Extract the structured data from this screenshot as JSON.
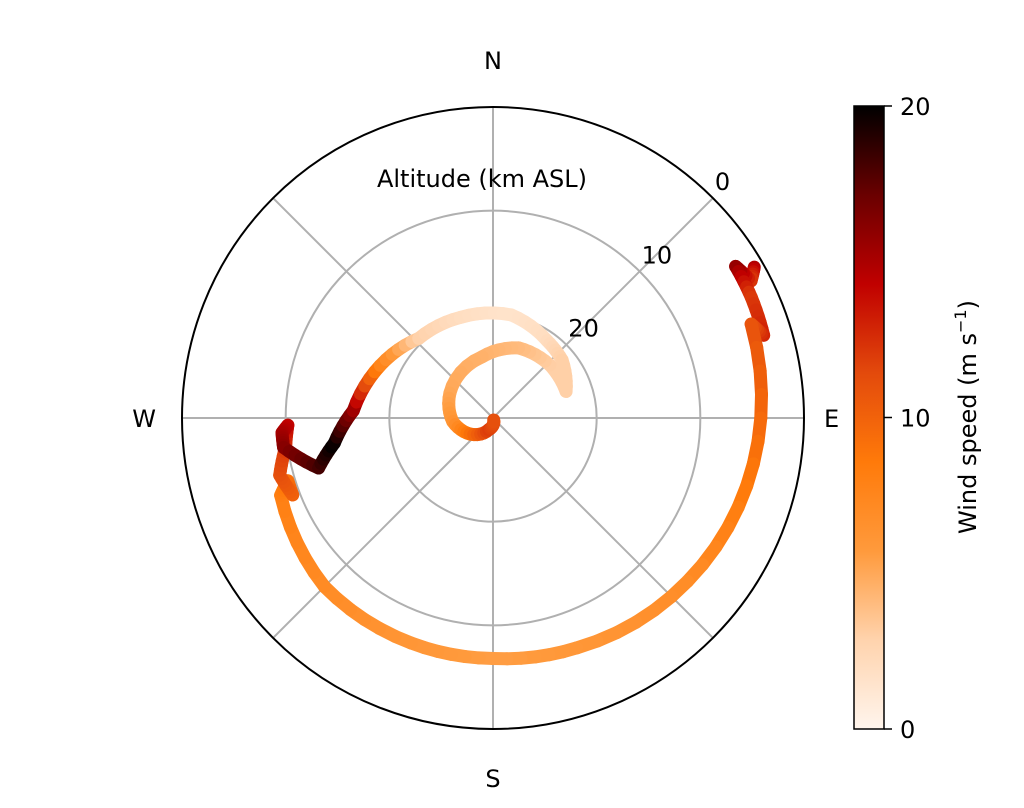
{
  "chart_data": {
    "type": "polar-line",
    "projection": "compass",
    "directions": {
      "north": "N",
      "east": "E",
      "south": "S",
      "west": "W"
    },
    "radial_axis": {
      "label": "Altitude (km ASL)",
      "range": [
        30,
        0
      ],
      "ticks": [
        0,
        10,
        20
      ],
      "tick_labels": [
        "0",
        "10",
        "20"
      ],
      "grid": true
    },
    "colorbar": {
      "label_main": "Wind speed (m s",
      "label_exp": "−1",
      "label_close": ")",
      "range": [
        0,
        20
      ],
      "ticks": [
        0,
        10,
        20
      ],
      "tick_labels": [
        "0",
        "10",
        "20"
      ],
      "colormap": [
        "#fff5ed",
        "#ffd3ad",
        "#ff9a3c",
        "#ff7a0a",
        "#e34a0c",
        "#c00000",
        "#6a0000",
        "#000000"
      ]
    },
    "grid_angles_deg": [
      0,
      45,
      90,
      135,
      180,
      225,
      270,
      315
    ],
    "series": [
      {
        "type": "trajectory",
        "points": [
          {
            "az": 60,
            "alt": 0.9,
            "ws": 15
          },
          {
            "az": 62,
            "alt": 1.8,
            "ws": 12
          },
          {
            "az": 58,
            "alt": 2.4,
            "ws": 16
          },
          {
            "az": 65,
            "alt": 2.5,
            "ws": 12
          },
          {
            "az": 73,
            "alt": 2.7,
            "ws": 13
          },
          {
            "az": 70,
            "alt": 3.5,
            "ws": 11
          },
          {
            "az": 100,
            "alt": 4.5,
            "ws": 9
          },
          {
            "az": 130,
            "alt": 5.5,
            "ws": 7
          },
          {
            "az": 160,
            "alt": 6.4,
            "ws": 6
          },
          {
            "az": 180,
            "alt": 6.8,
            "ws": 5.5
          },
          {
            "az": 200,
            "alt": 6.9,
            "ws": 6
          },
          {
            "az": 225,
            "alt": 7.0,
            "ws": 7
          },
          {
            "az": 250,
            "alt": 8.2,
            "ws": 8
          },
          {
            "az": 253,
            "alt": 9.3,
            "ws": 9
          },
          {
            "az": 249,
            "alt": 9.3,
            "ws": 10
          },
          {
            "az": 255,
            "alt": 8.7,
            "ws": 11
          },
          {
            "az": 262,
            "alt": 9.8,
            "ws": 12
          },
          {
            "az": 268,
            "alt": 10.2,
            "ws": 14
          },
          {
            "az": 266,
            "alt": 9.6,
            "ws": 15
          },
          {
            "az": 262,
            "alt": 9.6,
            "ws": 16
          },
          {
            "az": 254,
            "alt": 12.5,
            "ws": 18
          },
          {
            "az": 261,
            "alt": 14.5,
            "ws": 20
          },
          {
            "az": 273,
            "alt": 16.5,
            "ws": 16
          },
          {
            "az": 295,
            "alt": 18.0,
            "ws": 8
          },
          {
            "az": 317,
            "alt": 19.5,
            "ws": 3
          },
          {
            "az": 342,
            "alt": 19.8,
            "ws": 2
          },
          {
            "az": 10,
            "alt": 19.9,
            "ws": 1.5
          },
          {
            "az": 35,
            "alt": 20.9,
            "ws": 2
          },
          {
            "az": 50,
            "alt": 21.3,
            "ws": 3
          },
          {
            "az": 70,
            "alt": 22.5,
            "ws": 3
          },
          {
            "az": 47,
            "alt": 22.5,
            "ws": 3
          },
          {
            "az": 20,
            "alt": 22.8,
            "ws": 4
          },
          {
            "az": 350,
            "alt": 24.0,
            "ws": 4.5
          },
          {
            "az": 300,
            "alt": 25.2,
            "ws": 5
          },
          {
            "az": 265,
            "alt": 26.1,
            "ws": 6
          },
          {
            "az": 235,
            "alt": 27.3,
            "ws": 9
          },
          {
            "az": 200,
            "alt": 28.8,
            "ws": 12
          },
          {
            "az": 160,
            "alt": 29.8,
            "ws": 11
          }
        ]
      }
    ]
  }
}
